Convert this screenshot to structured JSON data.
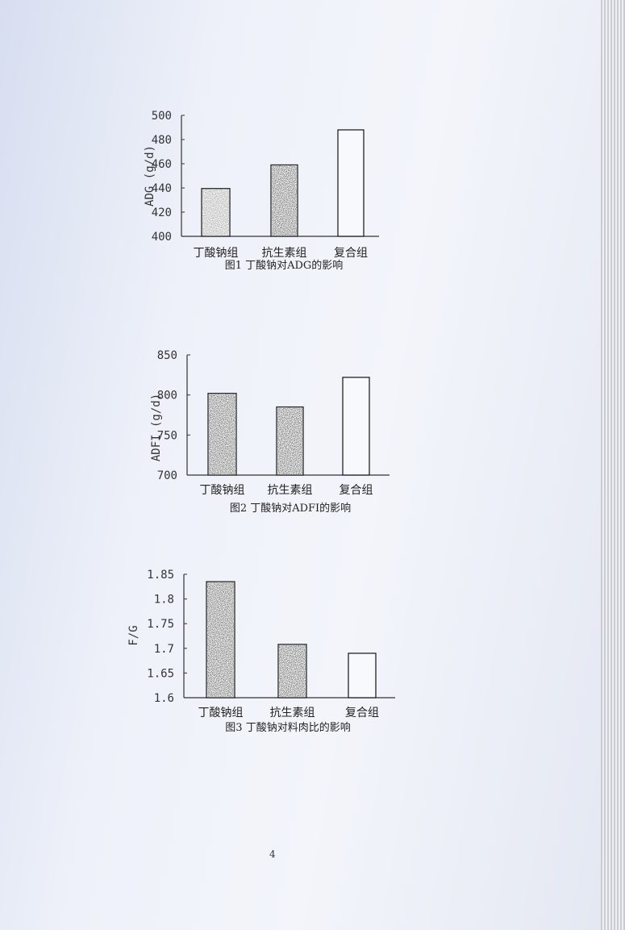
{
  "page_number": "4",
  "chart_data": [
    {
      "type": "bar",
      "title": "图1 丁酸钠对ADG的影响",
      "ylabel": "ADG (g/d)",
      "xlabel": "",
      "categories": [
        "丁酸钠组",
        "抗生素组",
        "复合组"
      ],
      "values": [
        439.5,
        459,
        488
      ],
      "ylim": [
        400,
        500
      ],
      "yticks": [
        "400",
        "420",
        "440",
        "460",
        "480",
        "500"
      ],
      "bar_fills": [
        "light-stipple",
        "dark-stipple",
        "white"
      ],
      "grid": false
    },
    {
      "type": "bar",
      "title": "图2 丁酸钠对ADFI的影响",
      "ylabel": "ADFI (g/d)",
      "xlabel": "",
      "categories": [
        "丁酸钠组",
        "抗生素组",
        "复合组"
      ],
      "values": [
        802,
        785,
        822
      ],
      "ylim": [
        700,
        850
      ],
      "yticks": [
        "700",
        "750",
        "800",
        "850"
      ],
      "bar_fills": [
        "dark-stipple",
        "dark-stipple",
        "white"
      ],
      "grid": false
    },
    {
      "type": "bar",
      "title": "图3 丁酸钠对料肉比的影响",
      "ylabel": "F/G",
      "xlabel": "",
      "categories": [
        "丁酸钠组",
        "抗生素组",
        "复合组"
      ],
      "values": [
        1.835,
        1.708,
        1.69
      ],
      "ylim": [
        1.6,
        1.85
      ],
      "yticks": [
        "1.6",
        "1.65",
        "1.7",
        "1.75",
        "1.8",
        "1.85"
      ],
      "bar_fills": [
        "dark-stipple",
        "dark-stipple",
        "white"
      ],
      "grid": false
    }
  ]
}
